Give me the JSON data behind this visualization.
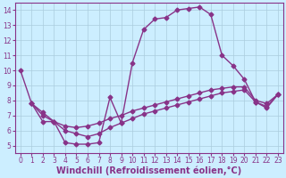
{
  "xlabel": "Windchill (Refroidissement éolien,°C)",
  "bg_color": "#cceeff",
  "grid_color": "#aaccdd",
  "line_color": "#883388",
  "marker": "D",
  "markersize": 2.5,
  "linewidth": 1.0,
  "xlim": [
    -0.5,
    23.5
  ],
  "ylim": [
    4.5,
    14.5
  ],
  "xticks": [
    0,
    1,
    2,
    3,
    4,
    5,
    6,
    7,
    8,
    9,
    10,
    11,
    12,
    13,
    14,
    15,
    16,
    17,
    18,
    19,
    20,
    21,
    22,
    23
  ],
  "yticks": [
    5,
    6,
    7,
    8,
    9,
    10,
    11,
    12,
    13,
    14
  ],
  "tick_color": "#883388",
  "tick_fontsize": 5.5,
  "xlabel_fontsize": 7.0,
  "line1_x": [
    0,
    1,
    2,
    3,
    4,
    5,
    6,
    7,
    8,
    9,
    10,
    11,
    12,
    13,
    14,
    15,
    16,
    17,
    18,
    19,
    20,
    21,
    22,
    23
  ],
  "line1_y": [
    10,
    7.8,
    6.6,
    6.6,
    5.2,
    5.1,
    5.1,
    5.2,
    8.2,
    6.5,
    10.5,
    12.7,
    13.4,
    13.5,
    14.0,
    14.1,
    14.2,
    13.7,
    11.0,
    10.3,
    9.4,
    7.9,
    7.5,
    8.4
  ],
  "line2_x": [
    1,
    2,
    3,
    4,
    5,
    6,
    7,
    8,
    9,
    10,
    11,
    12,
    13,
    14,
    15,
    16,
    17,
    18,
    19,
    20,
    21,
    22,
    23
  ],
  "line2_y": [
    7.8,
    7.2,
    6.6,
    6.3,
    6.2,
    6.3,
    6.5,
    6.8,
    7.0,
    7.3,
    7.5,
    7.7,
    7.9,
    8.1,
    8.3,
    8.5,
    8.7,
    8.8,
    8.9,
    8.9,
    8.0,
    7.8,
    8.4
  ],
  "line3_x": [
    1,
    2,
    3,
    4,
    5,
    6,
    7,
    8,
    9,
    10,
    11,
    12,
    13,
    14,
    15,
    16,
    17,
    18,
    19,
    20,
    21,
    22,
    23
  ],
  "line3_y": [
    7.8,
    7.0,
    6.6,
    6.0,
    5.8,
    5.6,
    5.8,
    6.2,
    6.5,
    6.8,
    7.1,
    7.3,
    7.5,
    7.7,
    7.9,
    8.1,
    8.3,
    8.5,
    8.6,
    8.7,
    7.9,
    7.6,
    8.4
  ]
}
